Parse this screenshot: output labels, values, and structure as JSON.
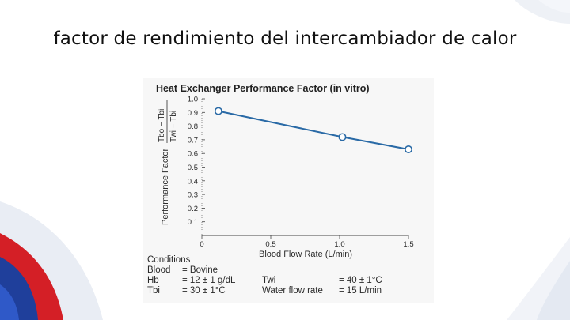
{
  "slide": {
    "title": "factor de rendimiento del intercambiador de calor"
  },
  "colors": {
    "line": "#2a6aa6",
    "marker_face": "#ffffff",
    "axis": "#444444",
    "deco_blue": "#1f3f9b",
    "deco_red": "#d41f26",
    "deco_light": "#e6ebf3"
  },
  "chart_data": {
    "type": "line",
    "title": "Heat Exchanger Performance Factor (in vitro)",
    "ylabel": "Performance Factor",
    "ylabel_fraction": {
      "numerator": "Tbo − Tbi",
      "denominator": "Twi − Tbi"
    },
    "xlabel": "Blood Flow Rate (L/min)",
    "xlim": [
      0,
      1.5
    ],
    "ylim": [
      0,
      1.0
    ],
    "xticks": [
      "0",
      "0.5",
      "1.0",
      "1.5"
    ],
    "yticks": [
      "0.1",
      "0.2",
      "0.3",
      "0.4",
      "0.5",
      "0.6",
      "0.7",
      "0.8",
      "0.9",
      "1.0"
    ],
    "grid": false,
    "series": [
      {
        "name": "Performance Factor",
        "x": [
          0.12,
          1.02,
          1.5
        ],
        "y": [
          0.91,
          0.72,
          0.63
        ]
      }
    ]
  },
  "conditions": {
    "heading": "Conditions",
    "rows": [
      {
        "label": "Blood",
        "value": "= Bovine"
      },
      {
        "label": "Hb",
        "value": "= 12 ± 1 g/dL"
      },
      {
        "label": "Tbi",
        "value": "= 30 ± 1°C"
      }
    ],
    "right_rows": [
      {
        "label": "Twi",
        "value": "= 40 ± 1°C"
      },
      {
        "label": "Water flow rate",
        "value": "= 15 L/min"
      }
    ]
  }
}
